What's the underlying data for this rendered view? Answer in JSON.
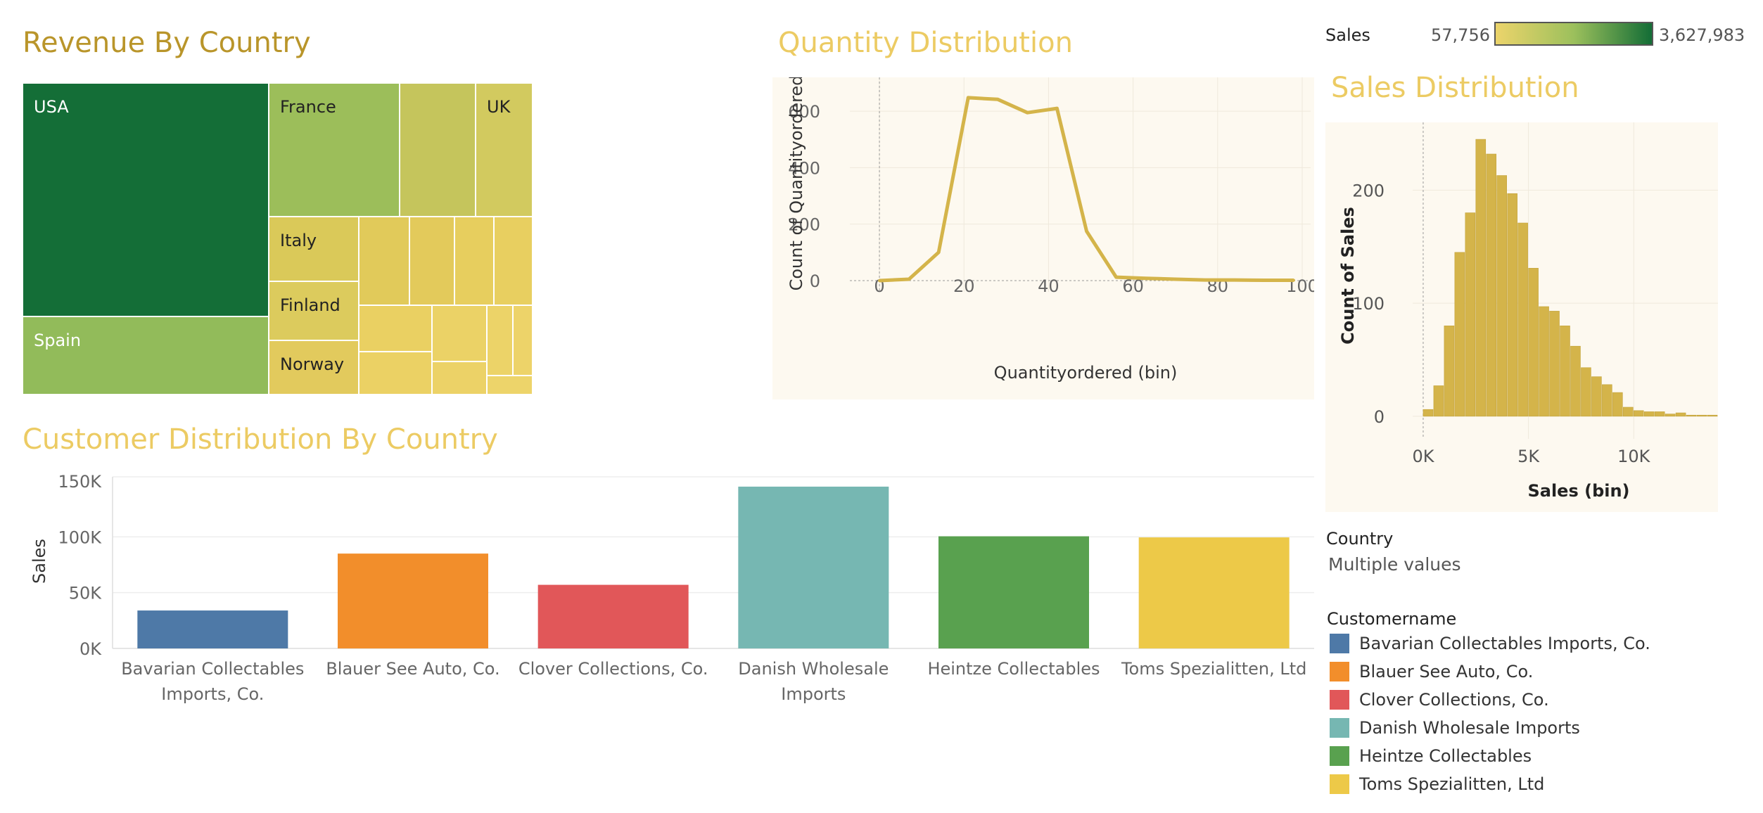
{
  "titles": {
    "revenue": "Revenue By Country",
    "quantity": "Quantity Distribution",
    "sales_dist": "Sales Distribution",
    "customer": "Customer Distribution By Country"
  },
  "color_legend": {
    "label": "Sales",
    "min": "57,756",
    "max": "3,627,983",
    "colors": [
      "#ecd46b",
      "#9cc05c",
      "#136d36"
    ]
  },
  "filter": {
    "country_title": "Country",
    "country_value": "Multiple values"
  },
  "customer_legend": {
    "title": "Customername",
    "items": [
      {
        "label": "Bavarian Collectables Imports, Co.",
        "color": "#4e79a7"
      },
      {
        "label": "Blauer See Auto, Co.",
        "color": "#f28e2b"
      },
      {
        "label": "Clover Collections, Co.",
        "color": "#e15759"
      },
      {
        "label": "Danish Wholesale Imports",
        "color": "#76b7b2"
      },
      {
        "label": "Heintze Collectables",
        "color": "#59a14f"
      },
      {
        "label": "Toms Spezialitten, Ltd",
        "color": "#edc948"
      }
    ]
  },
  "chart_data": [
    {
      "type": "treemap",
      "title": "Revenue By Country",
      "labels": [
        "USA",
        "France",
        "UK",
        "Spain",
        "Italy",
        "Finland",
        "Norway"
      ],
      "color_measure": "Sales",
      "colors": {
        "USA": "#146e37",
        "Spain": "#92bb5a",
        "France": "#9cbe5a",
        "UK": "#d2ca5f",
        "Italy": "#dac959",
        "Finland": "#dccb5d",
        "Norway": "#e2ca5d",
        "unlabeled": [
          "#c5c55c",
          "#e1ca5a",
          "#e3ca5b",
          "#e7ce5e",
          "#e8cf60",
          "#ead062",
          "#ebd164",
          "#ebd266",
          "#ecd267",
          "#ecd368",
          "#edd369",
          "#edd46a",
          "#eed56b"
        ]
      }
    },
    {
      "type": "line",
      "title": "Quantity Distribution",
      "xlabel": "Quantityordered (bin)",
      "ylabel": "Count of Quantityordered",
      "x": [
        0,
        7,
        14,
        21,
        28,
        35,
        42,
        49,
        56,
        63,
        70,
        77,
        84,
        91,
        98
      ],
      "y": [
        0,
        5,
        100,
        648,
        642,
        595,
        610,
        175,
        12,
        8,
        5,
        2,
        2,
        1,
        1
      ],
      "xticks": [
        "0",
        "20",
        "40",
        "60",
        "80",
        "100"
      ],
      "yticks": [
        "0",
        "200",
        "400",
        "600"
      ],
      "xlim": [
        -7,
        102
      ],
      "ylim": [
        -40,
        720
      ],
      "color": "#d4b44a"
    },
    {
      "type": "bar",
      "title": "Sales Distribution",
      "xlabel": "Sales (bin)",
      "ylabel": "Count of Sales",
      "bin_width": 500,
      "x": [
        0,
        500,
        1000,
        1500,
        2000,
        2500,
        3000,
        3500,
        4000,
        4500,
        5000,
        5500,
        6000,
        6500,
        7000,
        7500,
        8000,
        8500,
        9000,
        9500,
        10000,
        10500,
        11000,
        11500,
        12000,
        12500,
        13000,
        13500
      ],
      "values": [
        6,
        27,
        80,
        145,
        180,
        245,
        232,
        213,
        197,
        171,
        131,
        97,
        93,
        80,
        62,
        43,
        35,
        28,
        21,
        8,
        5,
        4,
        4,
        2,
        3,
        1,
        1,
        1
      ],
      "xticks": [
        "0K",
        "5K",
        "10K"
      ],
      "yticks": [
        "0",
        "100",
        "200"
      ],
      "xlim": [
        -500,
        14000
      ],
      "ylim": [
        -20,
        260
      ],
      "color": "#d4b44a"
    },
    {
      "type": "bar",
      "title": "Customer Distribution By Country",
      "ylabel": "Sales",
      "categories": [
        "Bavarian Collectables Imports, Co.",
        "Blauer See Auto, Co.",
        "Clover Collections, Co.",
        "Danish Wholesale Imports",
        "Heintze Collectables",
        "Toms Spezialitten, Ltd"
      ],
      "category_lines": [
        [
          "Bavarian Collectables",
          "Imports, Co."
        ],
        [
          "Blauer See Auto, Co."
        ],
        [
          "Clover Collections, Co."
        ],
        [
          "Danish Wholesale",
          "Imports"
        ],
        [
          "Heintze Collectables"
        ],
        [
          "Toms Spezialitten, Ltd"
        ]
      ],
      "values": [
        34000,
        85000,
        57000,
        145000,
        100500,
        99500
      ],
      "colors": [
        "#4e79a7",
        "#f28e2b",
        "#e15759",
        "#76b7b2",
        "#59a14f",
        "#edc948"
      ],
      "yticks": [
        "0K",
        "50K",
        "100K",
        "150K"
      ],
      "ylim": [
        0,
        150000
      ]
    }
  ]
}
